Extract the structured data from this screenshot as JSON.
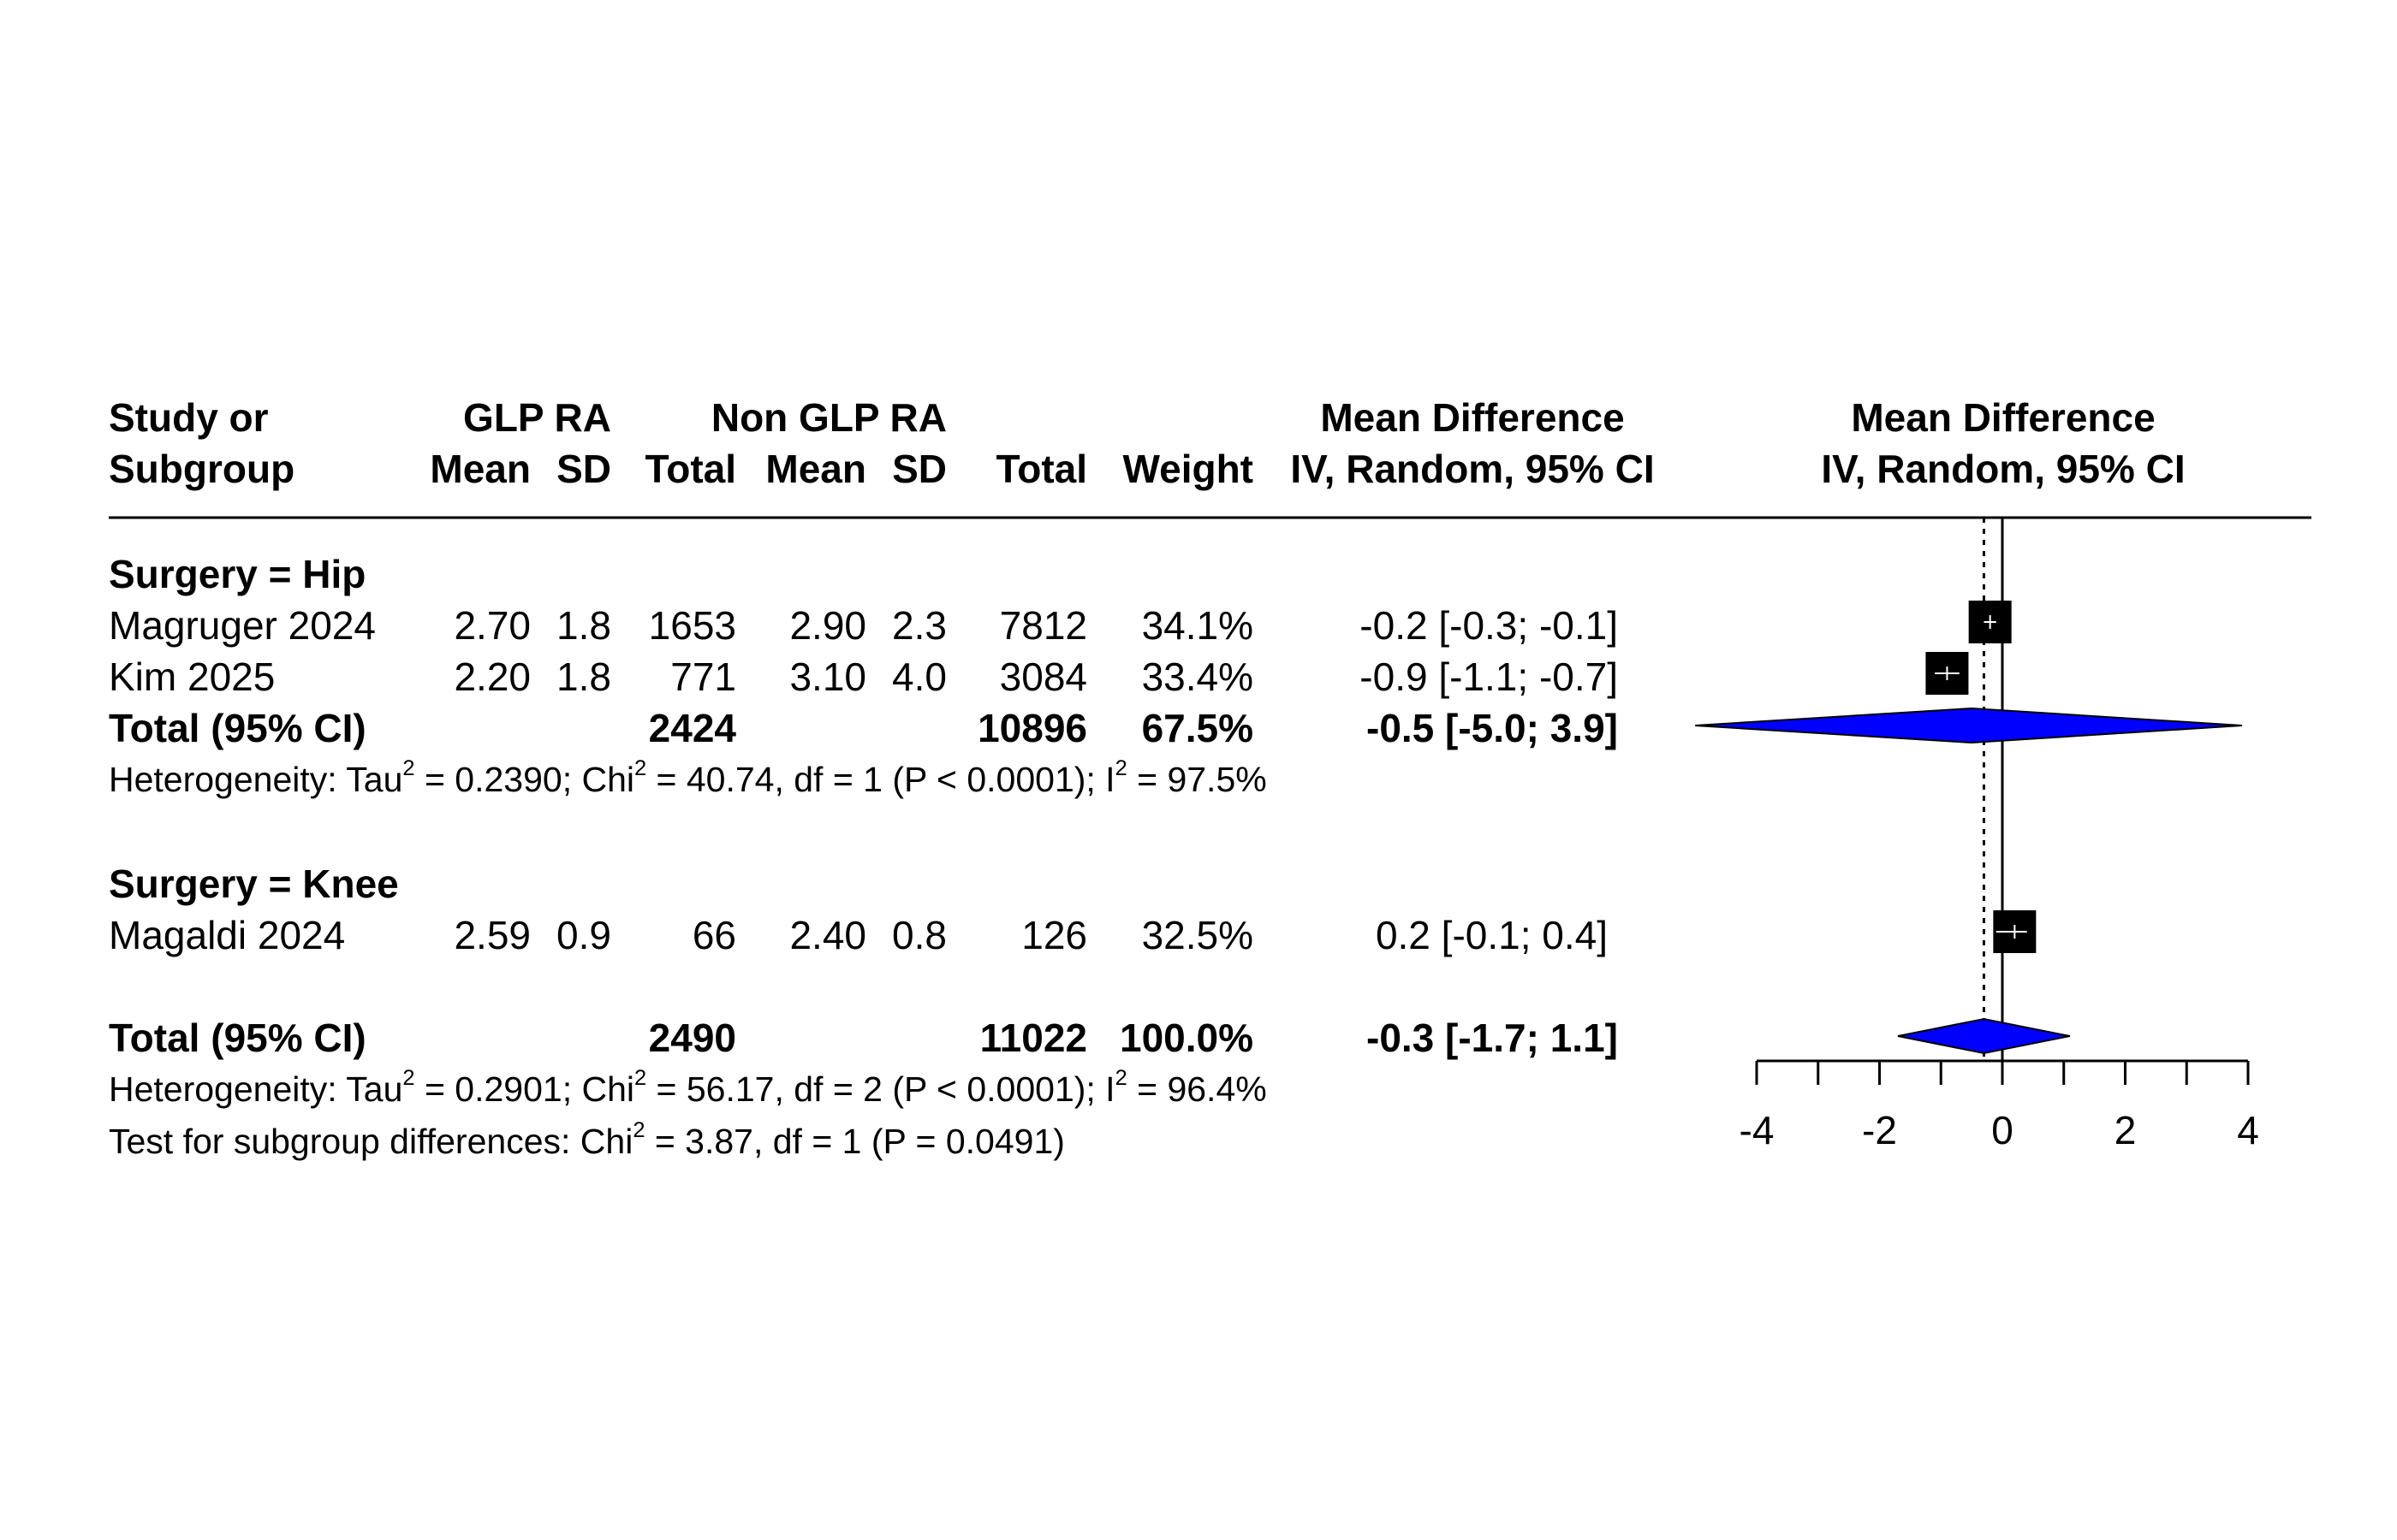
{
  "header": {
    "study_l1": "Study or",
    "study_l2": "Subgroup",
    "group1": "GLP RA",
    "group2": "Non GLP RA",
    "g1_mean": "Mean",
    "g1_sd": "SD",
    "g1_total": "Total",
    "g2_mean": "Mean",
    "g2_sd": "SD",
    "g2_total": "Total",
    "weight": "Weight",
    "md_l1": "Mean Difference",
    "md_l2": "IV, Random, 95% CI",
    "plot_l1": "Mean Difference",
    "plot_l2": "IV, Random, 95% CI"
  },
  "subgroups": [
    {
      "label": "Surgery = Hip",
      "studies": [
        {
          "name": "Magruger 2024",
          "m1": "2.70",
          "sd1": "1.8",
          "n1": "1653",
          "m2": "2.90",
          "sd2": "2.3",
          "n2": "7812",
          "weight": "34.1%",
          "ci": "-0.2 [-0.3; -0.1]"
        },
        {
          "name": "Kim 2025",
          "m1": "2.20",
          "sd1": "1.8",
          "n1": "771",
          "m2": "3.10",
          "sd2": "4.0",
          "n2": "3084",
          "weight": "33.4%",
          "ci": "-0.9 [-1.1; -0.7]"
        }
      ],
      "total": {
        "label": "Total (95% CI)",
        "n1": "2424",
        "n2": "10896",
        "weight": "67.5%",
        "ci": "-0.5 [-5.0;  3.9]"
      },
      "het": {
        "a": "Heterogeneity: Tau",
        "b": " = 0.2390; Chi",
        "c": " = 40.74, df = 1 (P < 0.0001); I",
        "d": " = 97.5%",
        "sup": "2"
      }
    },
    {
      "label": "Surgery = Knee",
      "studies": [
        {
          "name": "Magaldi 2024",
          "m1": "2.59",
          "sd1": "0.9",
          "n1": "66",
          "m2": "2.40",
          "sd2": "0.8",
          "n2": "126",
          "weight": "32.5%",
          "ci": "0.2 [-0.1;  0.4]"
        }
      ]
    }
  ],
  "overall": {
    "label": "Total (95% CI)",
    "n1": "2490",
    "n2": "11022",
    "weight": "100.0%",
    "ci": "-0.3 [-1.7;  1.1]",
    "het": {
      "a": "Heterogeneity: Tau",
      "b": " = 0.2901; Chi",
      "c": " = 56.17, df = 2 (P < 0.0001); I",
      "d": " = 96.4%",
      "sup": "2"
    },
    "test": {
      "a": "Test for subgroup differences: Chi",
      "b": " = 3.87, df = 1 (P = 0.0491)",
      "sup": "2"
    }
  },
  "chart_data": {
    "type": "forest",
    "xlim": [
      -4,
      4
    ],
    "xticks": [
      "-4",
      "-2",
      "0",
      "2",
      "4"
    ],
    "reference_line": 0,
    "overall_effect_line": -0.3,
    "studies": [
      {
        "name": "Magruger 2024",
        "md": -0.2,
        "lower": -0.3,
        "upper": -0.1,
        "weight": 34.1
      },
      {
        "name": "Kim 2025",
        "md": -0.9,
        "lower": -1.1,
        "upper": -0.7,
        "weight": 33.4
      },
      {
        "name": "Magaldi 2024",
        "md": 0.2,
        "lower": -0.1,
        "upper": 0.4,
        "weight": 32.5
      }
    ],
    "summaries": [
      {
        "name": "Total (95% CI) Hip",
        "md": -0.5,
        "lower": -5.0,
        "upper": 3.9
      },
      {
        "name": "Total (95% CI) Overall",
        "md": -0.3,
        "lower": -1.7,
        "upper": 1.1
      }
    ],
    "colors": {
      "diamond": "#0000ff",
      "square": "#000000",
      "ci_line": "#ffffff"
    }
  }
}
